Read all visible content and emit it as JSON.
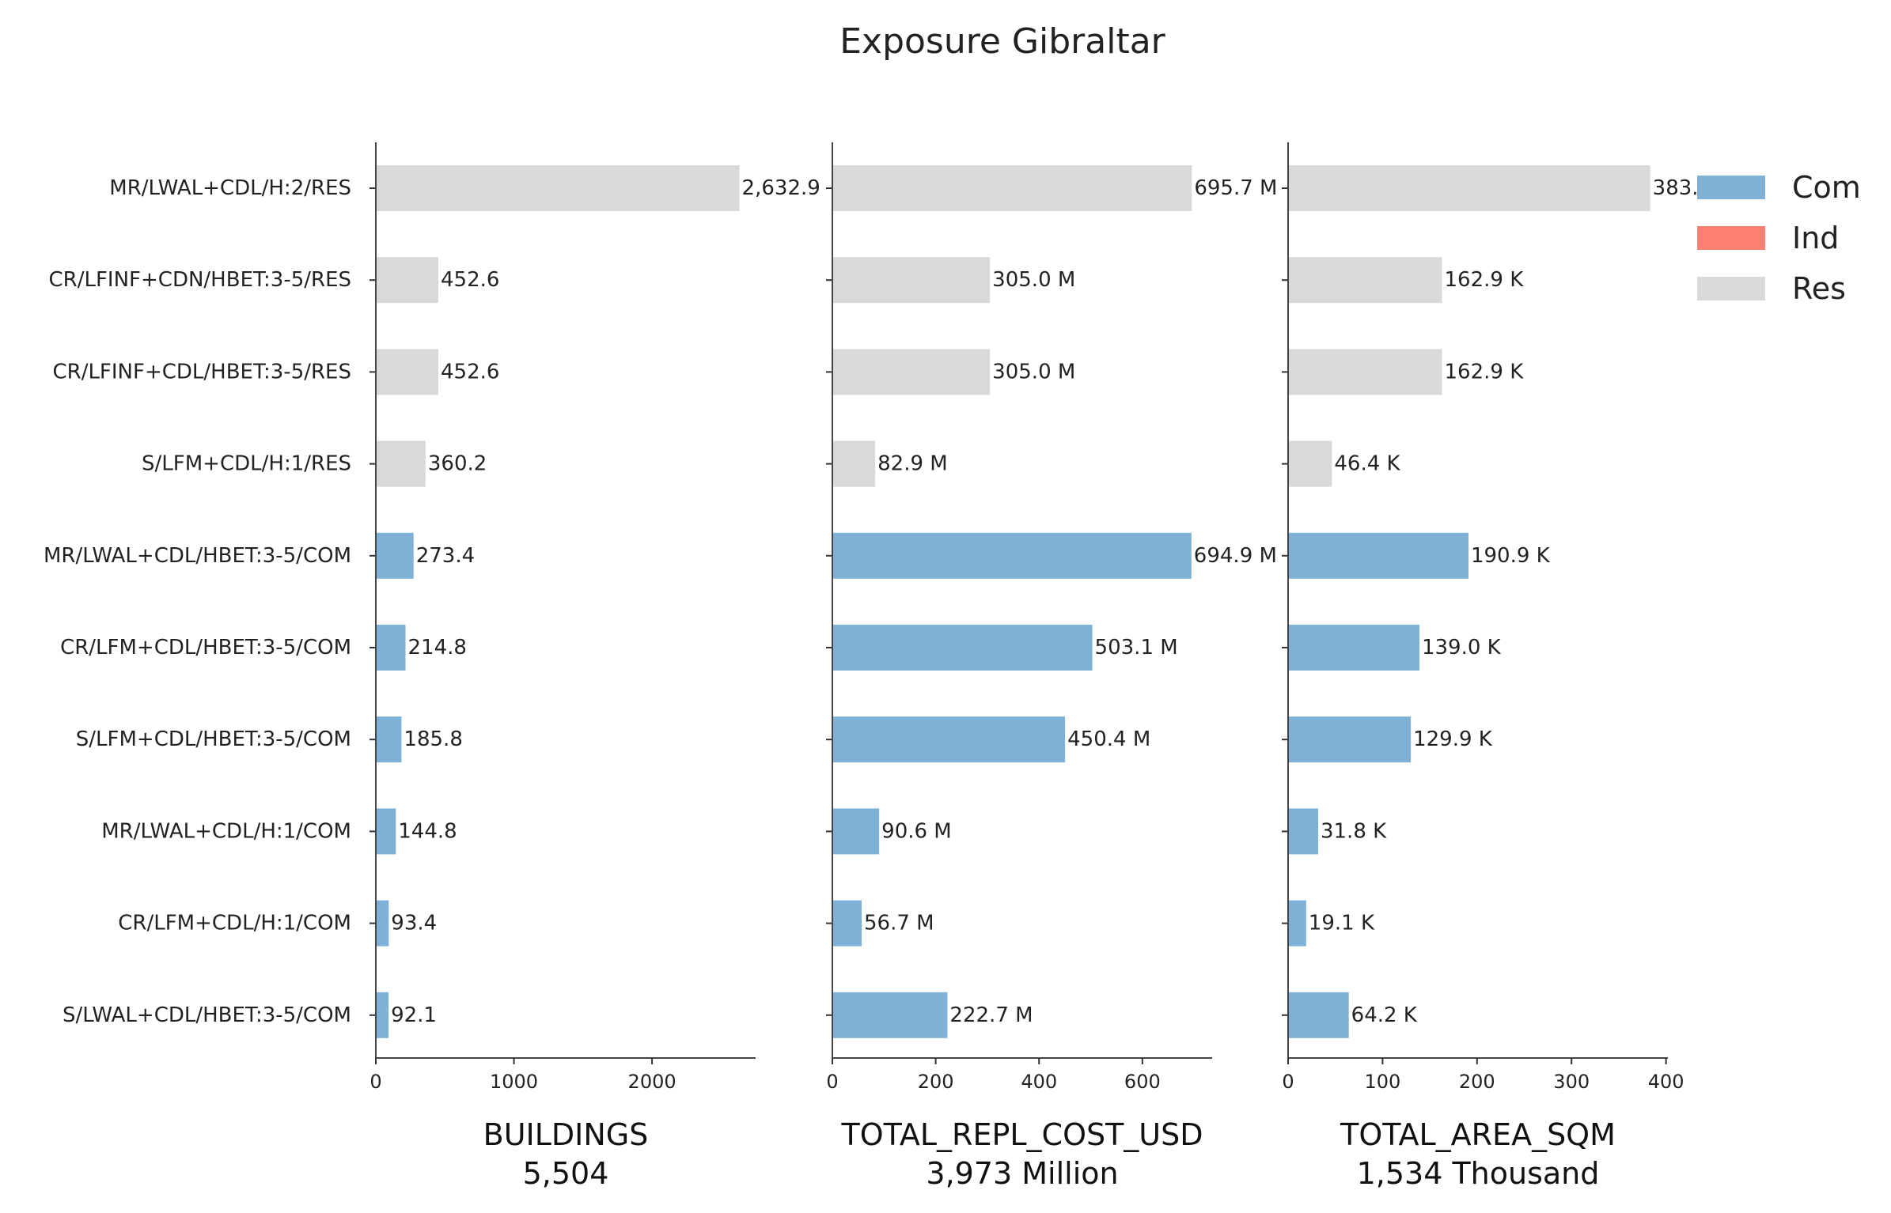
{
  "chart_data": {
    "type": "bar",
    "orientation": "horizontal",
    "title": "Exposure Gibraltar",
    "categories": [
      "MR/LWAL+CDL/H:2/RES",
      "CR/LFINF+CDN/HBET:3-5/RES",
      "CR/LFINF+CDL/HBET:3-5/RES",
      "S/LFM+CDL/H:1/RES",
      "MR/LWAL+CDL/HBET:3-5/COM",
      "CR/LFM+CDL/HBET:3-5/COM",
      "S/LFM+CDL/HBET:3-5/COM",
      "MR/LWAL+CDL/H:1/COM",
      "CR/LFM+CDL/H:1/COM",
      "S/LWAL+CDL/HBET:3-5/COM"
    ],
    "occupancy": [
      "Res",
      "Res",
      "Res",
      "Res",
      "Com",
      "Com",
      "Com",
      "Com",
      "Com",
      "Com"
    ],
    "legend": {
      "position": "top-right",
      "entries": [
        {
          "name": "Com",
          "color": "#7fb0d5"
        },
        {
          "name": "Ind",
          "color": "#fb8072"
        },
        {
          "name": "Res",
          "color": "#d9d9d9"
        }
      ]
    },
    "panels": [
      {
        "xlabel": "BUILDINGS",
        "total": "5,504",
        "xlim": [
          0,
          2750
        ],
        "ticks": [
          0,
          1000,
          2000
        ],
        "tick_labels": [
          "0",
          "1000",
          "2000"
        ],
        "values": [
          2632.9,
          452.6,
          452.6,
          360.2,
          273.4,
          214.8,
          185.8,
          144.8,
          93.4,
          92.1
        ],
        "labels": [
          "2,632.9",
          "452.6",
          "452.6",
          "360.2",
          "273.4",
          "214.8",
          "185.8",
          "144.8",
          "93.4",
          "92.1"
        ]
      },
      {
        "xlabel": "TOTAL_REPL_COST_USD",
        "total": "3,973 Million",
        "xlim": [
          0,
          735
        ],
        "ticks": [
          0,
          200,
          400,
          600
        ],
        "tick_labels": [
          "0",
          "200",
          "400",
          "600"
        ],
        "values": [
          695.7,
          305.0,
          305.0,
          82.9,
          694.9,
          503.1,
          450.4,
          90.6,
          56.7,
          222.7
        ],
        "labels": [
          "695.7 M",
          "305.0 M",
          "305.0 M",
          "82.9 M",
          "694.9 M",
          "503.1 M",
          "450.4 M",
          "90.6 M",
          "56.7 M",
          "222.7 M"
        ]
      },
      {
        "xlabel": "TOTAL_AREA_SQM",
        "total": "1,534 Thousand",
        "xlim": [
          0,
          402
        ],
        "ticks": [
          0,
          100,
          200,
          300,
          400
        ],
        "tick_labels": [
          "0",
          "100",
          "200",
          "300",
          "400"
        ],
        "values": [
          383.3,
          162.9,
          162.9,
          46.4,
          190.9,
          139.0,
          129.9,
          31.8,
          19.1,
          64.2
        ],
        "labels": [
          "383.",
          "162.9 K",
          "162.9 K",
          "46.4 K",
          "190.9 K",
          "139.0 K",
          "129.9 K",
          "31.8 K",
          "19.1 K",
          "64.2 K"
        ]
      }
    ],
    "grid": false
  }
}
